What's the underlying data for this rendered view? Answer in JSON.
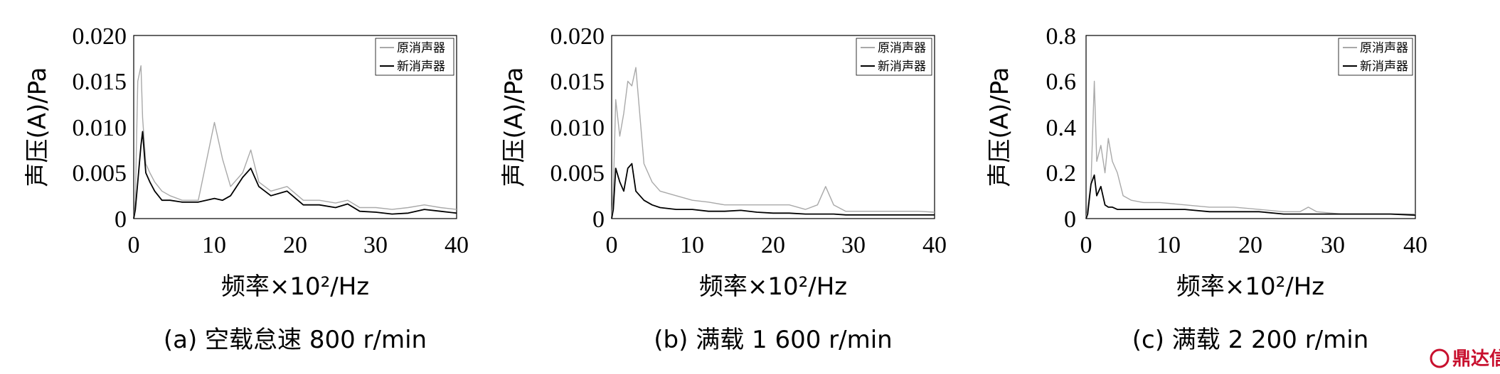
{
  "charts": [
    {
      "caption": "(a) 空载怠速 800 r/min",
      "ylabel": "声压(A)/Pa",
      "xlabel": "频率×10²/Hz",
      "yticks": [
        "0",
        "0.005",
        "0.010",
        "0.015",
        "0.020"
      ],
      "xticks": [
        "0",
        "10",
        "20",
        "30",
        "40"
      ],
      "legend": [
        "原消声器",
        "新消声器"
      ]
    },
    {
      "caption": "(b) 满载 1 600 r/min",
      "ylabel": "声压(A)/Pa",
      "xlabel": "频率×10²/Hz",
      "yticks": [
        "0",
        "0.005",
        "0.010",
        "0.015",
        "0.020"
      ],
      "xticks": [
        "0",
        "10",
        "20",
        "30",
        "40"
      ],
      "legend": [
        "原消声器",
        "新消声器"
      ]
    },
    {
      "caption": "(c) 满载 2 200 r/min",
      "ylabel": "声压(A)/Pa",
      "xlabel": "频率×10²/Hz",
      "yticks": [
        "0",
        "0.2",
        "0.4",
        "0.6",
        "0.8"
      ],
      "xticks": [
        "0",
        "10",
        "20",
        "30",
        "40"
      ],
      "legend": [
        "原消声器",
        "新消声器"
      ]
    }
  ],
  "watermark": "鼎达信",
  "colors": {
    "original": "#a9a9a9",
    "new": "#000000"
  },
  "chart_data": [
    {
      "type": "line",
      "title": "(a) 空载怠速 800 r/min",
      "xlabel": "频率×10²/Hz",
      "ylabel": "声压(A)/Pa",
      "xlim": [
        0,
        40
      ],
      "ylim": [
        0,
        0.02
      ],
      "legend_position": "top-right",
      "grid": false,
      "x": [
        0.2,
        0.5,
        0.9,
        1.1,
        1.5,
        2.0,
        2.6,
        3.5,
        4.5,
        6,
        8,
        10,
        11,
        12,
        13.5,
        14.5,
        15.5,
        17,
        19,
        21,
        23,
        25,
        26.5,
        28,
        30,
        32,
        34,
        36,
        38,
        40
      ],
      "series": [
        {
          "name": "原消声器",
          "values": [
            0.002,
            0.015,
            0.0167,
            0.011,
            0.006,
            0.005,
            0.004,
            0.003,
            0.0025,
            0.002,
            0.002,
            0.0105,
            0.0065,
            0.0035,
            0.005,
            0.0075,
            0.004,
            0.003,
            0.0035,
            0.002,
            0.002,
            0.0017,
            0.002,
            0.0012,
            0.0012,
            0.001,
            0.0012,
            0.0015,
            0.0012,
            0.001
          ]
        },
        {
          "name": "新消声器",
          "values": [
            0.001,
            0.004,
            0.008,
            0.0095,
            0.005,
            0.004,
            0.003,
            0.002,
            0.002,
            0.0018,
            0.0018,
            0.0022,
            0.002,
            0.0025,
            0.0045,
            0.0055,
            0.0035,
            0.0025,
            0.003,
            0.0015,
            0.0015,
            0.0012,
            0.0016,
            0.0008,
            0.0007,
            0.0005,
            0.0006,
            0.001,
            0.0008,
            0.0006
          ]
        }
      ]
    },
    {
      "type": "line",
      "title": "(b) 满载 1 600 r/min",
      "xlabel": "频率×10²/Hz",
      "ylabel": "声压(A)/Pa",
      "xlim": [
        0,
        40
      ],
      "ylim": [
        0,
        0.02
      ],
      "legend_position": "top-right",
      "grid": false,
      "x": [
        0.2,
        0.5,
        1.0,
        1.5,
        2.0,
        2.5,
        3.0,
        4.0,
        5.0,
        6,
        8,
        10,
        12,
        14,
        16,
        18,
        20,
        22,
        24,
        25.5,
        26.5,
        27.5,
        29,
        32,
        35,
        38,
        40
      ],
      "series": [
        {
          "name": "原消声器",
          "values": [
            0.003,
            0.013,
            0.009,
            0.0115,
            0.015,
            0.0145,
            0.0165,
            0.006,
            0.004,
            0.003,
            0.0025,
            0.002,
            0.0018,
            0.0015,
            0.0015,
            0.0015,
            0.0015,
            0.0015,
            0.001,
            0.0015,
            0.0035,
            0.0015,
            0.0008,
            0.0008,
            0.0008,
            0.0008,
            0.0007
          ]
        },
        {
          "name": "新消声器",
          "values": [
            0.001,
            0.0055,
            0.004,
            0.003,
            0.0055,
            0.006,
            0.003,
            0.002,
            0.0015,
            0.0012,
            0.001,
            0.001,
            0.0008,
            0.0008,
            0.0009,
            0.0007,
            0.0006,
            0.0006,
            0.0005,
            0.0005,
            0.0005,
            0.0005,
            0.0004,
            0.0004,
            0.0004,
            0.0004,
            0.0004
          ]
        }
      ]
    },
    {
      "type": "line",
      "title": "(c) 满载 2 200 r/min",
      "xlabel": "频率×10²/Hz",
      "ylabel": "声压(A)/Pa",
      "xlim": [
        0,
        40
      ],
      "ylim": [
        0,
        0.8
      ],
      "legend_position": "top-right",
      "grid": false,
      "x": [
        0.2,
        0.6,
        1.0,
        1.3,
        1.8,
        2.3,
        2.7,
        3.2,
        3.8,
        4.5,
        5.5,
        7,
        9,
        12,
        15,
        18,
        21,
        24,
        26,
        27,
        28,
        31,
        34,
        37,
        40
      ],
      "series": [
        {
          "name": "原消声器",
          "values": [
            0.05,
            0.15,
            0.6,
            0.25,
            0.32,
            0.2,
            0.35,
            0.25,
            0.2,
            0.1,
            0.08,
            0.07,
            0.07,
            0.06,
            0.05,
            0.05,
            0.04,
            0.03,
            0.03,
            0.05,
            0.03,
            0.02,
            0.02,
            0.02,
            0.02
          ]
        },
        {
          "name": "新消声器",
          "values": [
            0.02,
            0.15,
            0.19,
            0.1,
            0.14,
            0.06,
            0.05,
            0.05,
            0.04,
            0.04,
            0.04,
            0.04,
            0.04,
            0.04,
            0.03,
            0.03,
            0.03,
            0.02,
            0.02,
            0.02,
            0.02,
            0.02,
            0.02,
            0.02,
            0.015
          ]
        }
      ]
    }
  ]
}
